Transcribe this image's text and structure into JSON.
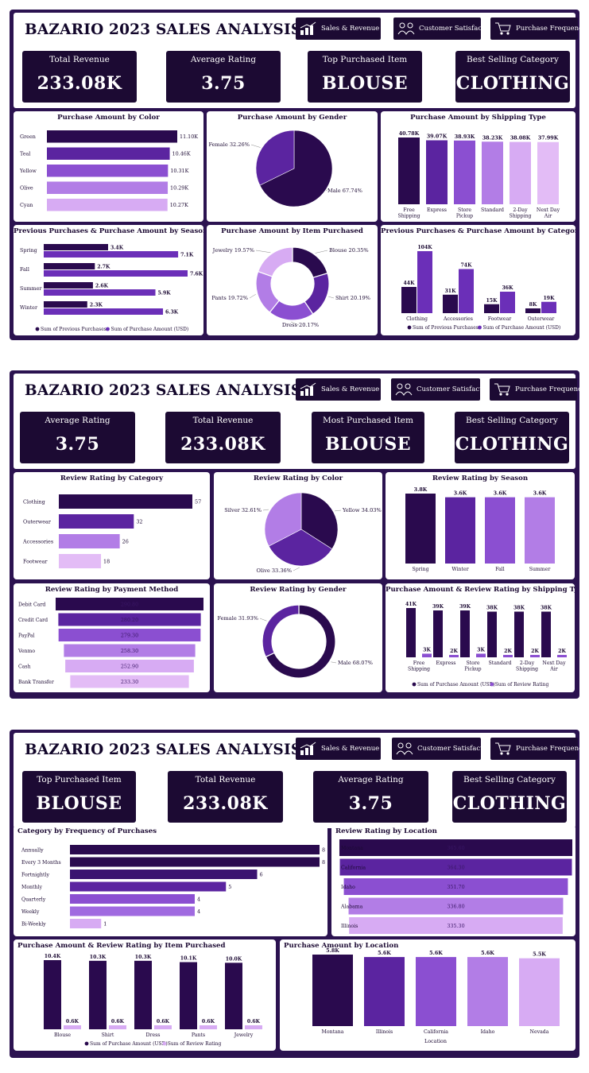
{
  "nav": {
    "sales": "Sales & Revenue",
    "satisfaction": "Customer Satisfaction",
    "frequency": "Purchase Frequency"
  },
  "colors": [
    "#2a0a4e",
    "#5b24a0",
    "#8b4fd1",
    "#b27de6",
    "#d7abf3",
    "#e3bcf6"
  ],
  "dashboards": [
    {
      "title": "BAZARIO 2023 SALES ANALYSIS",
      "kpis": [
        {
          "label": "Total Revenue",
          "value": "233.08K"
        },
        {
          "label": "Average Rating",
          "value": "3.75"
        },
        {
          "label": "Top Purchased Item",
          "value": "BLOUSE"
        },
        {
          "label": "Best Selling Category",
          "value": "CLOTHING"
        }
      ]
    },
    {
      "title": "BAZARIO 2023 SALES ANALYSIS",
      "kpis": [
        {
          "label": "Average Rating",
          "value": "3.75"
        },
        {
          "label": "Total Revenue",
          "value": "233.08K"
        },
        {
          "label": "Most Purchased Item",
          "value": "BLOUSE"
        },
        {
          "label": "Best Selling Category",
          "value": "CLOTHING"
        }
      ]
    },
    {
      "title": "BAZARIO 2023 SALES ANALYSIS",
      "kpis": [
        {
          "label": "Top Purchased Item",
          "value": "BLOUSE"
        },
        {
          "label": "Total Revenue",
          "value": "233.08K"
        },
        {
          "label": "Average Rating",
          "value": "3.75"
        },
        {
          "label": "Best Selling Category",
          "value": "CLOTHING"
        }
      ]
    }
  ],
  "chart_data": [
    {
      "id": "c1",
      "type": "bar",
      "orientation": "horizontal",
      "title": "Purchase Amount by Color",
      "categories": [
        "Green",
        "Teal",
        "Yellow",
        "Olive",
        "Cyan"
      ],
      "values": [
        11.1,
        10.46,
        10.31,
        10.29,
        10.27
      ],
      "labels": [
        "11.10K",
        "10.46K",
        "10.31K",
        "10.29K",
        "10.27K"
      ]
    },
    {
      "id": "c2",
      "type": "pie",
      "title": "Purchase Amount by Gender",
      "slices": [
        {
          "name": "Male",
          "value": 67.74,
          "label": "Male 67.74%"
        },
        {
          "name": "Female",
          "value": 32.26,
          "label": "Female 32.26%"
        }
      ]
    },
    {
      "id": "c3",
      "type": "bar",
      "title": "Purchase Amount by Shipping Type",
      "categories": [
        "Free Shipping",
        "Express",
        "Store Pickup",
        "Standard",
        "2-Day Shipping",
        "Next Day Air"
      ],
      "values": [
        40.78,
        39.07,
        38.93,
        38.23,
        38.08,
        37.99
      ],
      "labels": [
        "40.78K",
        "39.07K",
        "38.93K",
        "38.23K",
        "38.08K",
        "37.99K"
      ]
    },
    {
      "id": "c4",
      "type": "bar",
      "orientation": "horizontal",
      "title": "Previous Purchases & Purchase Amount by Season",
      "categories": [
        "Spring",
        "Fall",
        "Summer",
        "Winter"
      ],
      "series": [
        {
          "name": "Sum of Previous Purchases",
          "values": [
            3.4,
            2.7,
            2.6,
            2.3
          ],
          "labels": [
            "3.4K",
            "2.7K",
            "2.6K",
            "2.3K"
          ]
        },
        {
          "name": "Sum of Purchase Amount (USD)",
          "values": [
            7.1,
            7.6,
            5.9,
            6.3
          ],
          "labels": [
            "7.1K",
            "7.6K",
            "5.9K",
            "6.3K"
          ]
        }
      ]
    },
    {
      "id": "c5",
      "type": "pie",
      "donut": true,
      "title": "Purchase Amount by Item Purchased",
      "slices": [
        {
          "name": "Blouse",
          "value": 20.35,
          "label": "Blouse 20.35%"
        },
        {
          "name": "Shirt",
          "value": 20.19,
          "label": "Shirt 20.19%"
        },
        {
          "name": "Dress",
          "value": 20.17,
          "label": "Dress 20.17%"
        },
        {
          "name": "Pants",
          "value": 19.72,
          "label": "Pants 19.72%"
        },
        {
          "name": "Jewelry",
          "value": 19.57,
          "label": "Jewelry 19.57%"
        }
      ]
    },
    {
      "id": "c6",
      "type": "bar",
      "title": "Previous Purchases & Purchase Amount by Category",
      "categories": [
        "Clothing",
        "Accessories",
        "Footwear",
        "Outerwear"
      ],
      "series": [
        {
          "name": "Sum of Previous Purchases",
          "values": [
            44,
            31,
            15,
            8
          ],
          "labels": [
            "44K",
            "31K",
            "15K",
            "8K"
          ]
        },
        {
          "name": "Sum of Purchase Amount (USD)",
          "values": [
            104,
            74,
            36,
            19
          ],
          "labels": [
            "104K",
            "74K",
            "36K",
            "19K"
          ]
        }
      ]
    },
    {
      "id": "c7",
      "type": "bar",
      "orientation": "horizontal",
      "title": "Review Rating by Category",
      "categories": [
        "Clothing",
        "Outerwear",
        "Accessories",
        "Footwear"
      ],
      "values": [
        57,
        32,
        26,
        18
      ],
      "labels": [
        "57",
        "32",
        "26",
        "18"
      ]
    },
    {
      "id": "c8",
      "type": "pie",
      "title": "Review Rating by Color",
      "slices": [
        {
          "name": "Yellow",
          "value": 34.03,
          "label": "Yellow 34.03%"
        },
        {
          "name": "Olive",
          "value": 33.36,
          "label": "Olive 33.36%"
        },
        {
          "name": "Silver",
          "value": 32.61,
          "label": "Silver 32.61%"
        }
      ]
    },
    {
      "id": "c9",
      "type": "bar",
      "title": "Review Rating by Season",
      "categories": [
        "Spring",
        "Winter",
        "Fall",
        "Summer"
      ],
      "values": [
        3.8,
        3.6,
        3.6,
        3.6
      ],
      "labels": [
        "3.8K",
        "3.6K",
        "3.6K",
        "3.6K"
      ]
    },
    {
      "id": "c10",
      "type": "bar",
      "orientation": "horizontal",
      "funnel": true,
      "title": "Review Rating by Payment Method",
      "categories": [
        "Debit Card",
        "Credit Card",
        "PayPal",
        "Venmo",
        "Cash",
        "Bank Transfer"
      ],
      "values": [
        290.8,
        280.2,
        279.3,
        258.3,
        252.9,
        233.3
      ],
      "labels": [
        "290.80",
        "280.20",
        "279.30",
        "258.30",
        "252.90",
        "233.30"
      ]
    },
    {
      "id": "c11",
      "type": "pie",
      "donut": true,
      "title": "Review Rating by Gender",
      "slices": [
        {
          "name": "Male",
          "value": 68.07,
          "label": "Male 68.07%"
        },
        {
          "name": "Female",
          "value": 31.93,
          "label": "Female 31.93%"
        }
      ]
    },
    {
      "id": "c12",
      "type": "bar",
      "title": "Purchase Amount & Review Rating by Shipping Type",
      "categories": [
        "Free Shipping",
        "Express",
        "Store Pickup",
        "Standard",
        "2-Day Shipping",
        "Next Day Air"
      ],
      "series": [
        {
          "name": "Sum of Purchase Amount (USD)",
          "values": [
            41,
            39,
            39,
            38,
            38,
            38
          ],
          "labels": [
            "41K",
            "39K",
            "39K",
            "38K",
            "38K",
            "38K"
          ]
        },
        {
          "name": "Sum of Review Rating",
          "values": [
            3,
            2,
            3,
            2,
            2,
            2
          ],
          "labels": [
            "3K",
            "2K",
            "3K",
            "2K",
            "2K",
            "2K"
          ]
        }
      ]
    },
    {
      "id": "c13",
      "type": "bar",
      "orientation": "horizontal",
      "title": "Category by Frequency of Purchases",
      "categories": [
        "Annually",
        "Every 3 Months",
        "Fortnightly",
        "Monthly",
        "Quarterly",
        "Weekly",
        "Bi-Weekly"
      ],
      "values": [
        8,
        8,
        6,
        5,
        4,
        4,
        1
      ],
      "labels": [
        "8",
        "8",
        "6",
        "5",
        "4",
        "4",
        "1"
      ]
    },
    {
      "id": "c14",
      "type": "bar",
      "orientation": "horizontal",
      "funnel": true,
      "title": "Review Rating by Location",
      "categories": [
        "Montana",
        "California",
        "Idaho",
        "Alabama",
        "Illinois"
      ],
      "values": [
        365.6,
        364.3,
        351.7,
        336.8,
        335.3
      ],
      "labels": [
        "365.60",
        "364.30",
        "351.70",
        "336.80",
        "335.30"
      ]
    },
    {
      "id": "c15",
      "type": "bar",
      "title": "Purchase Amount & Review Rating by Item Purchased",
      "categories": [
        "Blouse",
        "Shirt",
        "Dress",
        "Pants",
        "Jewelry"
      ],
      "series": [
        {
          "name": "Sum of Purchase Amount (USD)",
          "values": [
            10.4,
            10.3,
            10.3,
            10.1,
            10.0
          ],
          "labels": [
            "10.4K",
            "10.3K",
            "10.3K",
            "10.1K",
            "10.0K"
          ]
        },
        {
          "name": "Sum of Review Rating",
          "values": [
            0.6,
            0.6,
            0.6,
            0.6,
            0.6
          ],
          "labels": [
            "0.6K",
            "0.6K",
            "0.6K",
            "0.6K",
            "0.6K"
          ]
        }
      ]
    },
    {
      "id": "c16",
      "type": "bar",
      "title": "Purchase Amount by Location",
      "xlabel": "Location",
      "categories": [
        "Montana",
        "Illinois",
        "California",
        "Idaho",
        "Nevada"
      ],
      "values": [
        5.8,
        5.6,
        5.6,
        5.6,
        5.5
      ],
      "labels": [
        "5.8K",
        "5.6K",
        "5.6K",
        "5.6K",
        "5.5K"
      ]
    }
  ]
}
